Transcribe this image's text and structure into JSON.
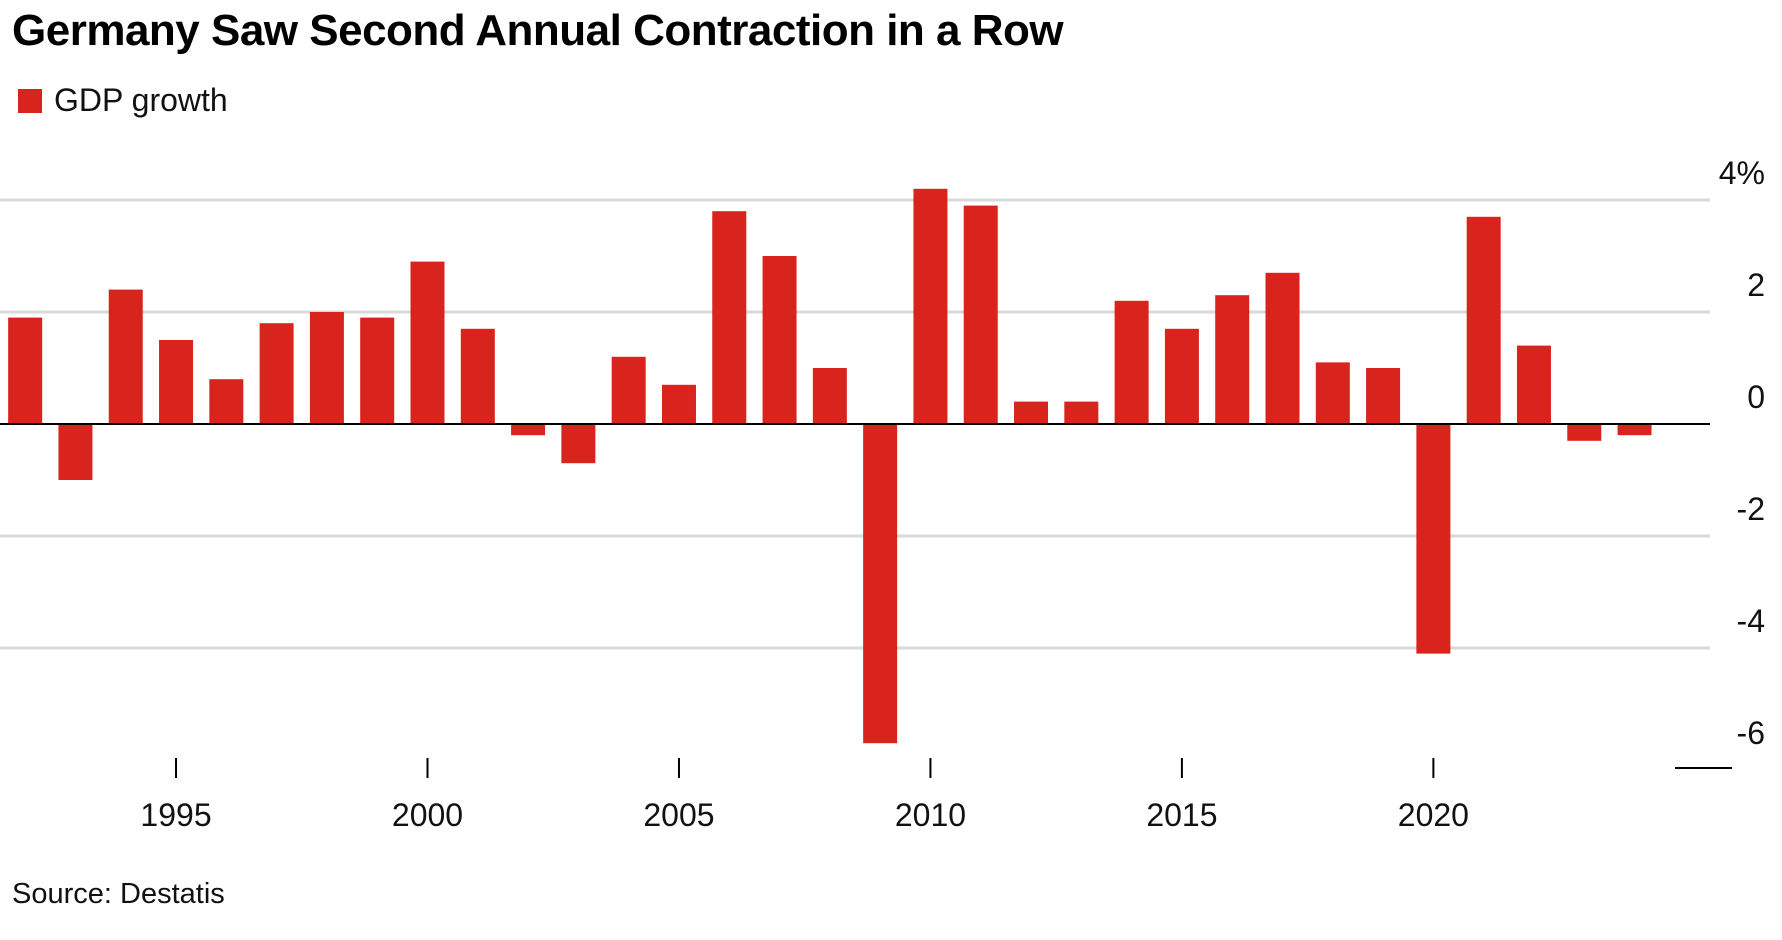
{
  "title": "Germany Saw Second Annual Contraction in a Row",
  "source": "Source: Destatis",
  "colors": {
    "bar": "#d9231d",
    "grid": "#d9d9d9",
    "axis": "#000000"
  },
  "chart_data": {
    "type": "bar",
    "title": "Germany Saw Second Annual Contraction in a Row",
    "legend": {
      "entries": [
        "GDP growth"
      ],
      "position": "top-left"
    },
    "series": [
      {
        "name": "GDP growth",
        "x": [
          1992,
          1993,
          1994,
          1995,
          1996,
          1997,
          1998,
          1999,
          2000,
          2001,
          2002,
          2003,
          2004,
          2005,
          2006,
          2007,
          2008,
          2009,
          2010,
          2011,
          2012,
          2013,
          2014,
          2015,
          2016,
          2017,
          2018,
          2019,
          2020,
          2021,
          2022,
          2023,
          2024
        ],
        "values": [
          1.9,
          -1.0,
          2.4,
          1.5,
          0.8,
          1.8,
          2.0,
          1.9,
          2.9,
          1.7,
          -0.2,
          -0.7,
          1.2,
          0.7,
          3.8,
          3.0,
          1.0,
          -5.7,
          4.2,
          3.9,
          0.4,
          0.4,
          2.2,
          1.7,
          2.3,
          2.7,
          1.1,
          1.0,
          -4.1,
          3.7,
          1.4,
          -0.3,
          -0.2
        ]
      }
    ],
    "x_ticks": [
      1995,
      2000,
      2005,
      2010,
      2015,
      2020
    ],
    "y_ticks": [
      {
        "value": 4,
        "label": "4%"
      },
      {
        "value": 2,
        "label": "2"
      },
      {
        "value": 0,
        "label": "0"
      },
      {
        "value": -2,
        "label": "-2"
      },
      {
        "value": -4,
        "label": "-4"
      },
      {
        "value": -6,
        "label": "-6"
      }
    ],
    "ylim": [
      -6,
      4
    ],
    "xlim": [
      1991.5,
      2025.5
    ],
    "grid": true,
    "y_axis_side": "right"
  }
}
